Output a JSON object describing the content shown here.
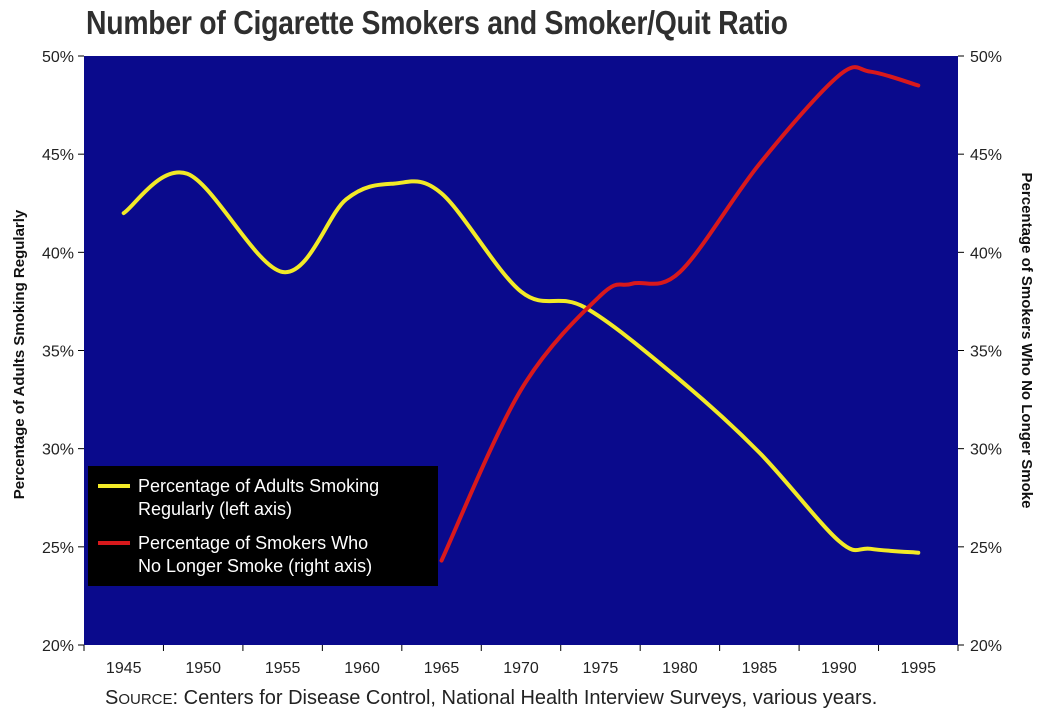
{
  "title": "Number of Cigarette Smokers and Smoker/Quit Ratio",
  "source": {
    "label_initial": "S",
    "label_rest": "OURCE",
    "text": ": Centers for Disease Control, National Health Interview Surveys, various years."
  },
  "colors": {
    "plot_background": "#0a0a8c",
    "series_adults": "#f2ea27",
    "series_quit": "#d8191c",
    "legend_background": "#000000"
  },
  "chart_data": {
    "type": "line",
    "title": "Number of Cigarette Smokers and Smoker/Quit Ratio",
    "xlabel": "",
    "ylabel": "Percentage of Adults Smoking Regularly",
    "y2label": "Percentage of Smokers Who No Longer Smoke",
    "x_ticks": [
      "1945",
      "1950",
      "1955",
      "1960",
      "1965",
      "1970",
      "1975",
      "1980",
      "1985",
      "1990",
      "1995"
    ],
    "xlim": [
      1942.5,
      1997.5
    ],
    "ylim": [
      20,
      50
    ],
    "y2lim": [
      20,
      50
    ],
    "y_ticks": [
      "20%",
      "25%",
      "30%",
      "35%",
      "40%",
      "45%",
      "50%"
    ],
    "y2_ticks": [
      "20%",
      "25%",
      "30%",
      "35%",
      "40%",
      "45%",
      "50%"
    ],
    "grid": false,
    "legend_position": "lower-left",
    "series": [
      {
        "name": "Percentage of Adults Smoking Regularly (left axis)",
        "legend_lines": [
          "Percentage of Adults Smoking",
          "Regularly (left axis)"
        ],
        "axis": "left",
        "x": [
          1945,
          1949,
          1955,
          1959,
          1962,
          1965,
          1970,
          1974,
          1980,
          1985,
          1990,
          1992,
          1995
        ],
        "values": [
          42.0,
          44.0,
          39.0,
          42.7,
          43.5,
          43.0,
          38.0,
          37.2,
          33.5,
          29.8,
          25.3,
          24.9,
          24.7
        ]
      },
      {
        "name": "Percentage of Smokers Who No Longer Smoke (right axis)",
        "legend_lines": [
          "Percentage of Smokers Who",
          "No Longer Smoke (right axis)"
        ],
        "axis": "right",
        "x": [
          1965,
          1970,
          1975,
          1977,
          1980,
          1985,
          1990,
          1992,
          1995
        ],
        "values": [
          24.3,
          33.0,
          37.8,
          38.4,
          39.0,
          44.5,
          49.0,
          49.2,
          48.5
        ]
      }
    ]
  }
}
